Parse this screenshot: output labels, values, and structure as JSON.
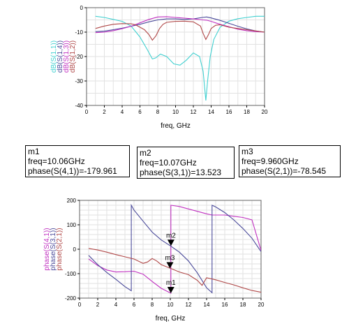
{
  "chart_data": [
    {
      "type": "line",
      "xlabel": "freq, GHz",
      "xlim": [
        0,
        20
      ],
      "ylim": [
        -40,
        0
      ],
      "xticks": [
        0,
        2,
        4,
        6,
        8,
        10,
        12,
        14,
        16,
        18,
        20
      ],
      "yticks": [
        0,
        -10,
        -20,
        -30,
        -40
      ],
      "grid": true,
      "series": [
        {
          "name": "dB(S(1,1))",
          "color": "#40d0d0",
          "x": [
            1,
            2,
            3,
            4,
            5,
            6,
            6.8,
            7.4,
            7.8,
            8.3,
            9,
            9.8,
            10.5,
            11.2,
            12,
            12.7,
            13.1,
            13.4,
            13.6,
            13.9,
            14.3,
            15,
            16,
            17,
            18,
            19,
            20
          ],
          "y": [
            -3.5,
            -4,
            -4.8,
            -5.6,
            -7.5,
            -12,
            -17,
            -21,
            -20.5,
            -19,
            -20,
            -23,
            -23.5,
            -21.5,
            -18.5,
            -20,
            -26,
            -38,
            -30,
            -20,
            -13,
            -8,
            -5.5,
            -4.5,
            -4,
            -3.5,
            -3.5
          ]
        },
        {
          "name": "dB(S(1,4))",
          "color": "#4a4a9a",
          "x": [
            1,
            2,
            3,
            4,
            5,
            6,
            7,
            8,
            9,
            10,
            11,
            12,
            13,
            13.5,
            14,
            15,
            16,
            17,
            18,
            19,
            20
          ],
          "y": [
            -9.8,
            -9.6,
            -9,
            -8.4,
            -7.6,
            -6.8,
            -5.8,
            -5,
            -4.6,
            -4.6,
            -4.8,
            -4.6,
            -4,
            -3.8,
            -4.2,
            -5.2,
            -6.4,
            -7.6,
            -8.7,
            -9.5,
            -10
          ]
        },
        {
          "name": "dB(S(1,3))",
          "color": "#c030c0",
          "x": [
            1,
            2,
            3,
            4,
            5,
            6,
            7,
            8,
            9,
            10,
            11,
            12,
            13,
            13.5,
            14,
            15,
            16,
            17,
            18,
            19,
            20
          ],
          "y": [
            -10.2,
            -10,
            -9.4,
            -8.6,
            -7.6,
            -6.2,
            -4.8,
            -3.8,
            -3.7,
            -4,
            -4.3,
            -4.6,
            -5,
            -5.1,
            -5.6,
            -6.8,
            -7.8,
            -8.8,
            -9.4,
            -9.8,
            -10
          ]
        },
        {
          "name": "dB(S(1,2))",
          "color": "#b04848",
          "x": [
            1,
            2,
            3,
            4,
            5,
            5.5,
            6,
            6.5,
            7,
            7.4,
            7.8,
            8.2,
            8.6,
            9,
            10,
            11,
            12,
            12.8,
            13.1,
            13.4,
            13.7,
            14,
            14.5,
            15,
            16,
            17,
            18,
            19,
            20
          ],
          "y": [
            -8.5,
            -7.5,
            -6.8,
            -6.5,
            -6.6,
            -7,
            -8,
            -9,
            -11,
            -13.3,
            -11.5,
            -8.5,
            -6.8,
            -6,
            -5.6,
            -5.5,
            -5.8,
            -7.5,
            -10.5,
            -13,
            -11,
            -8.5,
            -7.2,
            -7,
            -8,
            -8.5,
            -9,
            -9.5,
            -10
          ]
        }
      ]
    },
    {
      "type": "line",
      "xlabel": "freq, GHz",
      "xlim": [
        0,
        20
      ],
      "ylim": [
        -200,
        200
      ],
      "xticks": [
        0,
        2,
        4,
        6,
        8,
        10,
        12,
        14,
        16,
        18,
        20
      ],
      "yticks": [
        200,
        100,
        0,
        -100,
        -200
      ],
      "grid": true,
      "series": [
        {
          "name": "phase(S(4,1))",
          "color": "#c030c0",
          "x": [
            1,
            2,
            3,
            4,
            5,
            6,
            7,
            8,
            9,
            10.06,
            10.06,
            11,
            12,
            13,
            14,
            14.6,
            14.6,
            16,
            17,
            18,
            19,
            20
          ],
          "y": [
            -40,
            -67,
            -85,
            -93,
            -92,
            -90,
            -102,
            -132,
            -160,
            -180,
            180,
            175,
            165,
            155,
            145,
            140,
            140,
            140,
            135,
            130,
            120,
            -5
          ]
        },
        {
          "name": "phase(S(3,1))",
          "color": "#4a4a9a",
          "x": [
            1,
            2,
            3,
            4,
            5,
            5.7,
            5.7,
            6,
            7,
            8,
            9,
            10,
            11,
            12,
            13,
            14,
            14.6,
            14.6,
            15,
            16,
            17,
            18,
            19,
            20
          ],
          "y": [
            -25,
            -63,
            -95,
            -123,
            -153,
            -170,
            180,
            160,
            115,
            70,
            38,
            14,
            -12,
            -48,
            -98,
            -158,
            -178,
            180,
            173,
            150,
            120,
            85,
            45,
            -10
          ]
        },
        {
          "name": "phase(S(2,1))",
          "color": "#b04848",
          "x": [
            1,
            2,
            3,
            4,
            5,
            6,
            7,
            7.5,
            8,
            8.5,
            9,
            10,
            11,
            12,
            13,
            13.5,
            14,
            15,
            16,
            17,
            18,
            19,
            20
          ],
          "y": [
            3,
            -3,
            -12,
            -22,
            -31,
            -40,
            -58,
            -52,
            -38,
            -48,
            -63,
            -78,
            -93,
            -104,
            -128,
            -148,
            -117,
            -125,
            -136,
            -146,
            -158,
            -169,
            -176
          ]
        }
      ],
      "markers": [
        {
          "label": "m2",
          "x": 10.07,
          "y": 13.523
        },
        {
          "label": "m3",
          "x": 9.96,
          "y": -78.545
        },
        {
          "label": "m1",
          "x": 10.06,
          "y": -179.961
        }
      ]
    }
  ],
  "markers": [
    {
      "name": "m1",
      "freq": "freq=10.06GHz",
      "phase": "phase(S(4,1))=-179.961"
    },
    {
      "name": "m2",
      "freq": "freq=10.07GHz",
      "phase": "phase(S(3,1))=13.523"
    },
    {
      "name": "m3",
      "freq": "freq=9.960GHz",
      "phase": "phase(S(2,1))=-78.545"
    }
  ]
}
